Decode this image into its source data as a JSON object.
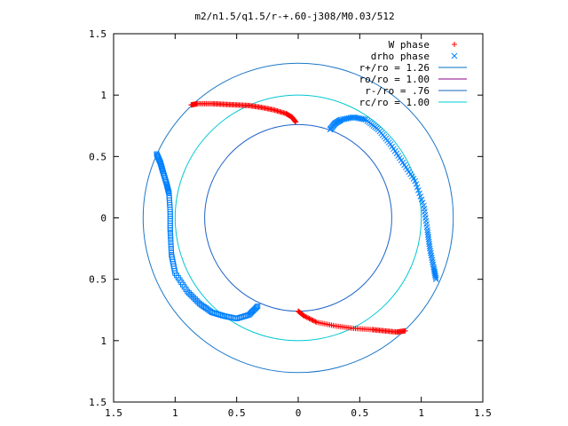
{
  "chart_data": {
    "type": "scatter",
    "title": "m2/n1.5/q1.5/r-+.60-j308/M0.03/512",
    "xlim": [
      -1.5,
      1.5
    ],
    "ylim": [
      -1.5,
      1.5
    ],
    "x_ticks": [
      -1.5,
      -1,
      -0.5,
      0,
      0.5,
      1,
      1.5
    ],
    "x_tick_labels": [
      "1.5",
      "1",
      "0.5",
      "0",
      "0.5",
      "1",
      "1.5"
    ],
    "y_ticks": [
      1.5,
      1,
      0.5,
      0,
      -0.5,
      -1,
      -1.5
    ],
    "y_tick_labels": [
      "1.5",
      "1",
      "0.5",
      "0",
      "0.5",
      "1",
      "1.5"
    ],
    "grid": false,
    "legend_position": "top-right",
    "legend": [
      {
        "label": "W phase",
        "marker": "plus",
        "color": "#ff0000"
      },
      {
        "label": "drho phase",
        "marker": "cross",
        "color": "#0080ff"
      },
      {
        "label": "r+/ro = 1.26",
        "marker": "line",
        "color": "#0070c0"
      },
      {
        "label": "ro/ro = 1.00",
        "marker": "line",
        "color": "#8b008b"
      },
      {
        "label": "r-/ro = .76",
        "marker": "line",
        "color": "#1565c0"
      },
      {
        "label": "rc/ro = 1.00",
        "marker": "line",
        "color": "#00ced1"
      }
    ],
    "circles": [
      {
        "name": "r+/ro",
        "radius": 1.26,
        "color": "#1e78c8"
      },
      {
        "name": "rc/ro",
        "radius": 1.0,
        "color": "#00c8d2"
      },
      {
        "name": "r-/ro",
        "radius": 0.76,
        "color": "#1e64c8"
      }
    ],
    "w_phase": {
      "color": "#ff0000",
      "segments": [
        [
          [
            -0.87,
            0.92
          ],
          [
            -0.82,
            0.93
          ],
          [
            -0.7,
            0.93
          ],
          [
            -0.6,
            0.925
          ],
          [
            -0.5,
            0.92
          ],
          [
            -0.4,
            0.915
          ],
          [
            -0.3,
            0.9
          ],
          [
            -0.2,
            0.88
          ],
          [
            -0.1,
            0.85
          ],
          [
            -0.05,
            0.82
          ],
          [
            -0.02,
            0.78
          ]
        ],
        [
          [
            0.0,
            -0.76
          ],
          [
            0.05,
            -0.8
          ],
          [
            0.15,
            -0.85
          ],
          [
            0.3,
            -0.88
          ],
          [
            0.45,
            -0.9
          ],
          [
            0.6,
            -0.91
          ],
          [
            0.7,
            -0.92
          ],
          [
            0.8,
            -0.93
          ],
          [
            0.87,
            -0.92
          ]
        ]
      ]
    },
    "drho_phase": {
      "color": "#0080ff",
      "segments": [
        [
          [
            0.26,
            0.72
          ],
          [
            0.3,
            0.77
          ],
          [
            0.35,
            0.8
          ],
          [
            0.45,
            0.82
          ],
          [
            0.55,
            0.8
          ],
          [
            0.65,
            0.72
          ],
          [
            0.75,
            0.6
          ],
          [
            0.85,
            0.45
          ],
          [
            0.95,
            0.3
          ],
          [
            1.02,
            0.1
          ],
          [
            1.05,
            -0.1
          ],
          [
            1.07,
            -0.25
          ],
          [
            1.1,
            -0.4
          ],
          [
            1.12,
            -0.5
          ]
        ],
        [
          [
            -1.15,
            0.52
          ],
          [
            -1.12,
            0.45
          ],
          [
            -1.1,
            0.38
          ],
          [
            -1.07,
            0.28
          ],
          [
            -1.05,
            0.2
          ],
          [
            -1.04,
            0.05
          ],
          [
            -1.04,
            -0.1
          ],
          [
            -1.03,
            -0.3
          ],
          [
            -1.0,
            -0.45
          ],
          [
            -0.9,
            -0.6
          ],
          [
            -0.8,
            -0.7
          ],
          [
            -0.7,
            -0.77
          ],
          [
            -0.6,
            -0.8
          ],
          [
            -0.5,
            -0.82
          ],
          [
            -0.4,
            -0.79
          ],
          [
            -0.33,
            -0.72
          ]
        ]
      ]
    }
  }
}
